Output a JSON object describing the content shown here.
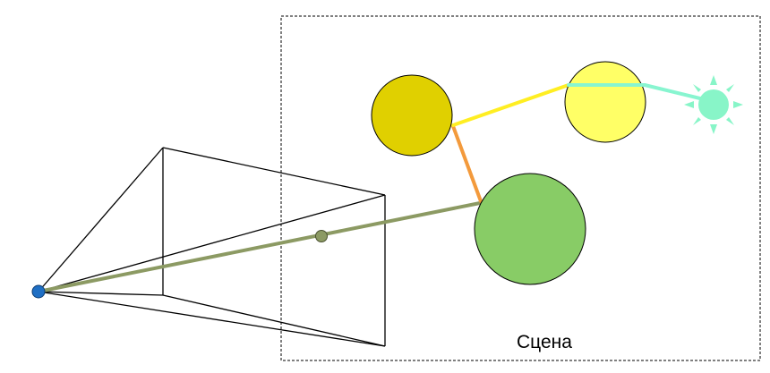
{
  "scene": {
    "label": "Сцена"
  },
  "colors": {
    "background": "#ffffff",
    "frustum_lines": "#000000",
    "scene_border": "#000000",
    "camera_eye": "#1f6fc4",
    "view_ray": "#8c9a63",
    "view_point": "#8c9a63",
    "sphere_dark_yellow": "#e0d000",
    "sphere_light_yellow": "#ffff66",
    "sphere_green": "#88cc66",
    "ray_yellow": "#ffee22",
    "ray_orange": "#f39a3c",
    "ray_cyan": "#88f5d0",
    "light_source": "#88f5c8"
  },
  "icons": {
    "light_source": "sun-icon",
    "camera": "camera-eye-icon"
  }
}
